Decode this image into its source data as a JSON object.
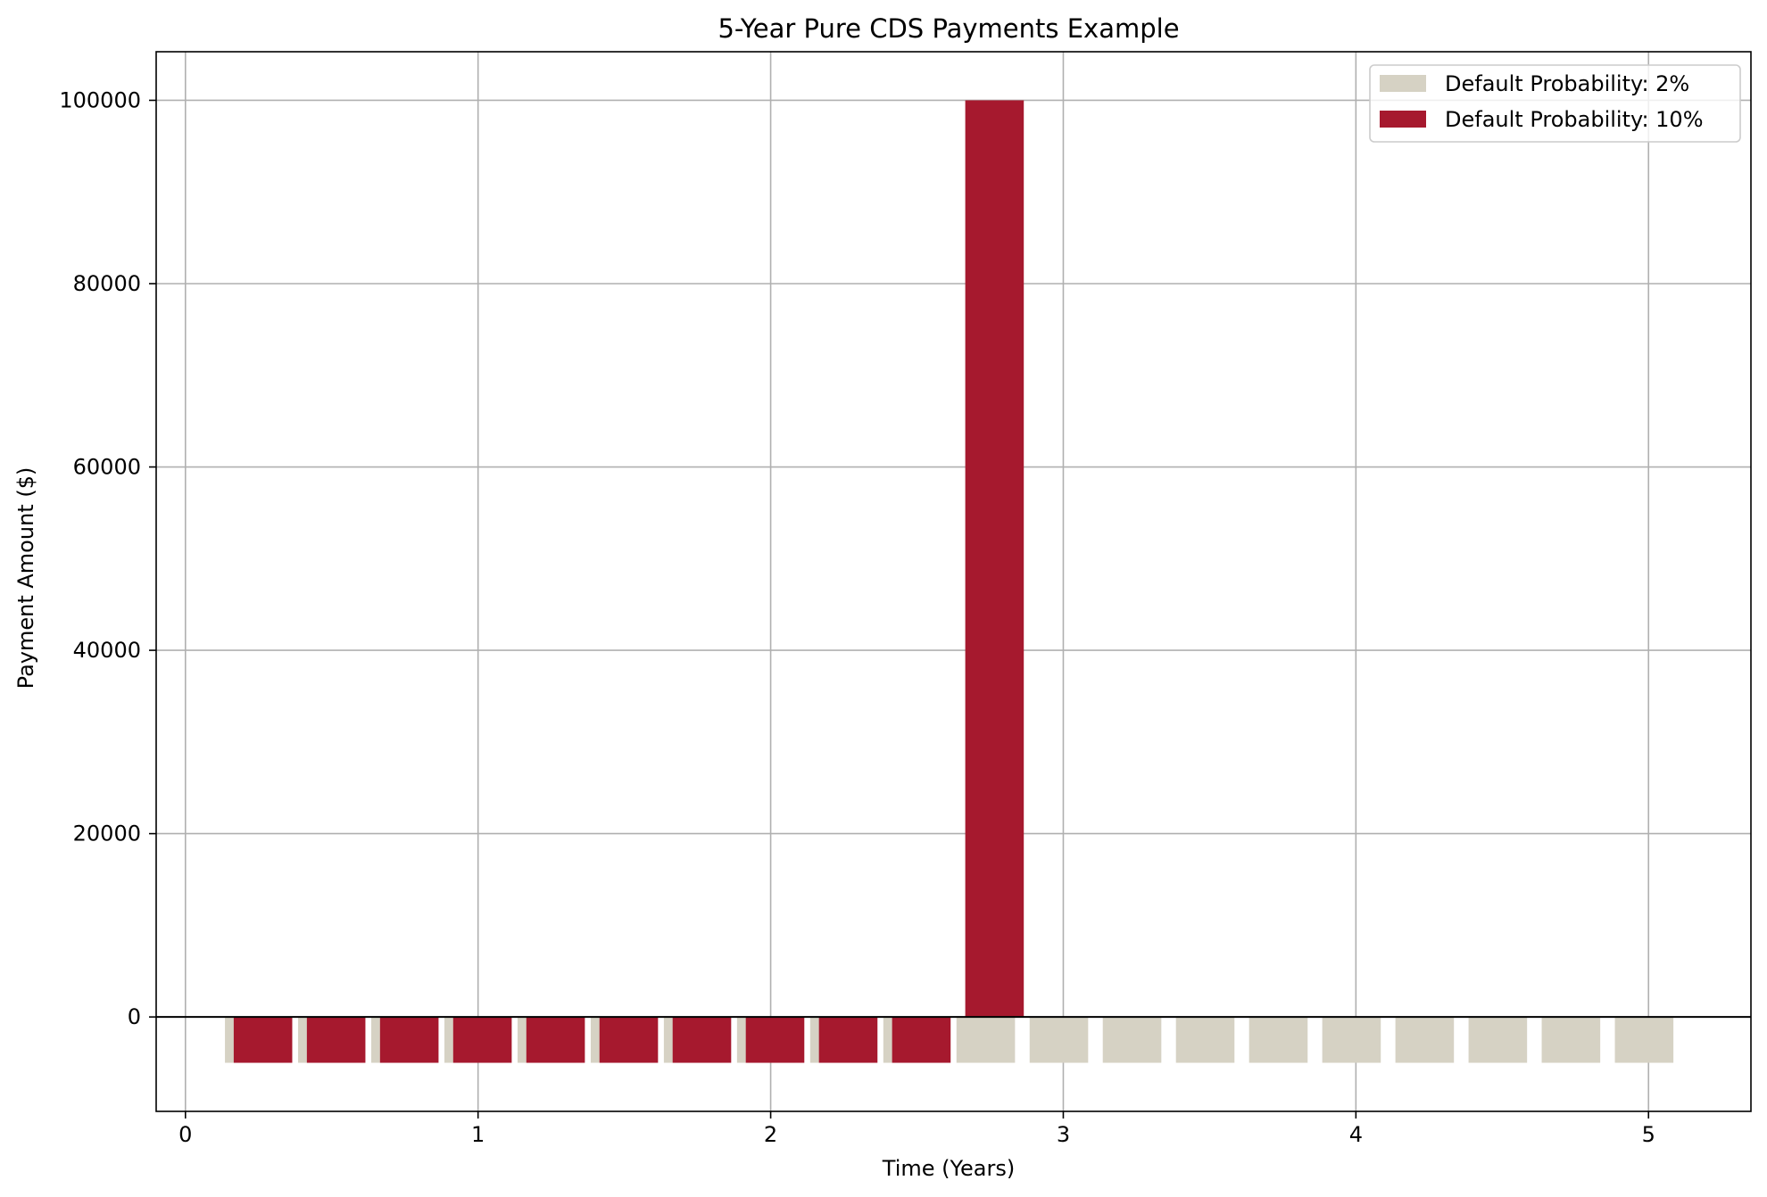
{
  "chart_data": {
    "type": "bar",
    "title": "5-Year Pure CDS Payments Example",
    "xlabel": "Time (Years)",
    "ylabel": "Payment Amount ($)",
    "xlim": [
      -0.1,
      5.35
    ],
    "ylim": [
      -10300,
      105300
    ],
    "xticks": [
      0,
      1,
      2,
      3,
      4,
      5
    ],
    "yticks": [
      0,
      20000,
      40000,
      60000,
      80000,
      100000
    ],
    "grid": true,
    "legend_position": "top-right",
    "bar_width": 0.2,
    "series": [
      {
        "name": "Default Probability: 2%",
        "color": "#d6d2c4",
        "offset": -0.015,
        "x": [
          0.25,
          0.5,
          0.75,
          1.0,
          1.25,
          1.5,
          1.75,
          2.0,
          2.25,
          2.5,
          2.75,
          3.0,
          3.25,
          3.5,
          3.75,
          4.0,
          4.25,
          4.5,
          4.75,
          5.0
        ],
        "values": [
          -5000,
          -5000,
          -5000,
          -5000,
          -5000,
          -5000,
          -5000,
          -5000,
          -5000,
          -5000,
          -5000,
          -5000,
          -5000,
          -5000,
          -5000,
          -5000,
          -5000,
          -5000,
          -5000,
          -5000
        ]
      },
      {
        "name": "Default Probability: 10%",
        "color": "#a6192e",
        "offset": 0.015,
        "x": [
          0.25,
          0.5,
          0.75,
          1.0,
          1.25,
          1.5,
          1.75,
          2.0,
          2.25,
          2.5,
          2.75
        ],
        "values": [
          -5000,
          -5000,
          -5000,
          -5000,
          -5000,
          -5000,
          -5000,
          -5000,
          -5000,
          -5000,
          100000
        ]
      }
    ]
  }
}
